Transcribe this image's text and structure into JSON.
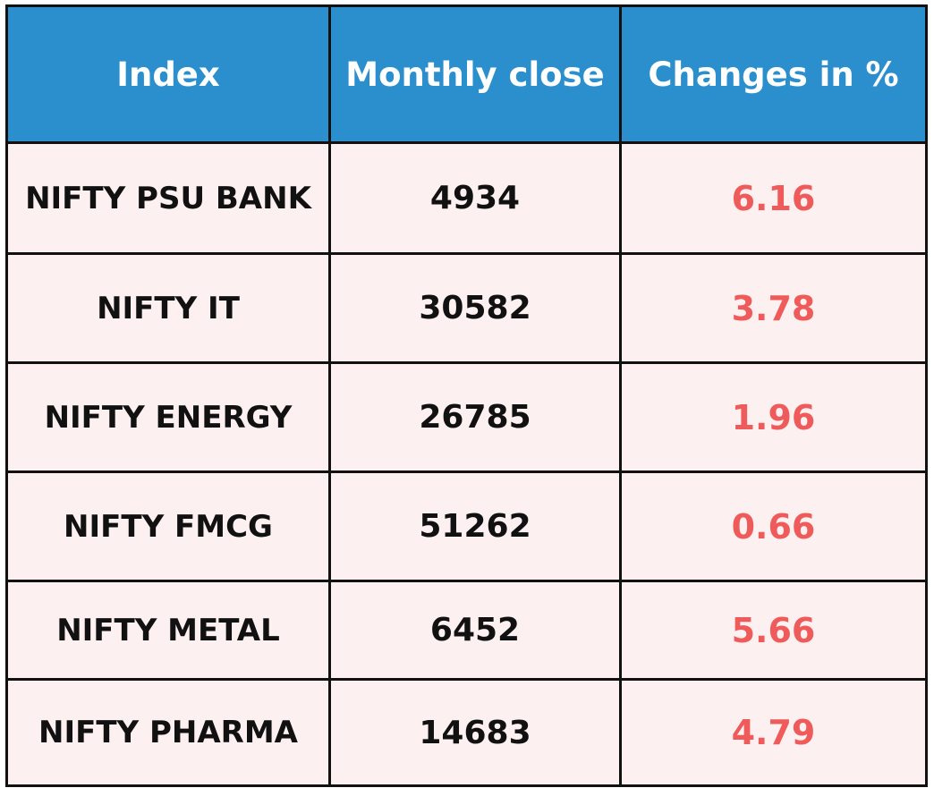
{
  "table": {
    "header": [
      "Index",
      "Monthly close",
      "Changes in %"
    ],
    "rows": [
      [
        "NIFTY PSU BANK",
        4934,
        6.16
      ],
      [
        "NIFTY IT",
        30582,
        3.78
      ],
      [
        "NIFTY ENERGY",
        26785,
        1.96
      ],
      [
        "NIFTY FMCG",
        51262,
        0.66
      ],
      [
        "NIFTY METAL",
        6452,
        5.66
      ],
      [
        "NIFTY PHARMA",
        14683,
        4.79
      ]
    ]
  }
}
